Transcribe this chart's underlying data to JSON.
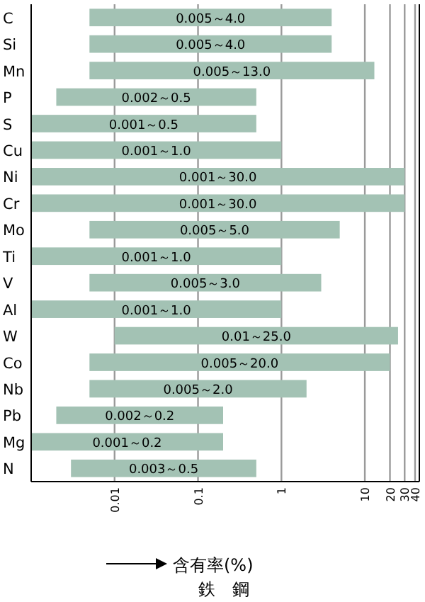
{
  "chart_data": {
    "type": "bar",
    "orientation": "horizontal",
    "log": "x",
    "grid": "x",
    "color": "#a3c2b4",
    "categories": [
      "C",
      "Si",
      "Mn",
      "P",
      "S",
      "Cu",
      "Ni",
      "Cr",
      "Mo",
      "Ti",
      "V",
      "Al",
      "W",
      "Co",
      "Nb",
      "Pb",
      "Mg",
      "N"
    ],
    "base": [
      0.005,
      0.005,
      0.005,
      0.002,
      0.001,
      0.001,
      0.001,
      0.001,
      0.005,
      0.001,
      0.005,
      0.001,
      0.01,
      0.005,
      0.005,
      0.002,
      0.001,
      0.003
    ],
    "values": [
      3.995,
      3.995,
      12.995,
      0.498,
      0.499,
      0.999,
      29.999,
      29.999,
      4.995,
      0.999,
      2.995,
      0.999,
      24.99,
      19.995,
      1.995,
      0.198,
      0.199,
      0.497
    ],
    "value_labels": [
      "0.005～4.0",
      "0.005～4.0",
      "0.005～13.0",
      "0.002～0.5",
      "0.001～0.5",
      "0.001～1.0",
      "0.001～30.0",
      "0.001～30.0",
      "0.005～5.0",
      "0.001～1.0",
      "0.005～3.0",
      "0.001～1.0",
      "0.01～25.0",
      "0.005～20.0",
      "0.005～2.0",
      "0.002～0.2",
      "0.001～0.2",
      "0.003～0.5"
    ],
    "xlim": [
      0.001,
      45
    ],
    "xticks": [
      0.01,
      0.1,
      1,
      10,
      20,
      30,
      40
    ],
    "xlabel": "含有率(%)",
    "annotations": [
      "鉄　鋼"
    ]
  }
}
